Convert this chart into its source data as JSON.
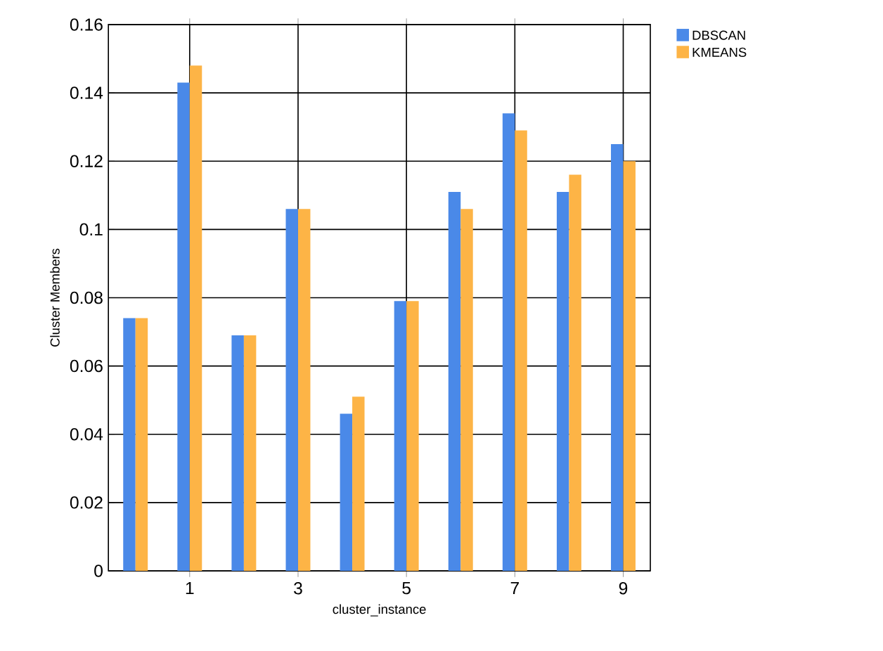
{
  "chart_data": {
    "type": "bar",
    "xlabel": "cluster_instance",
    "ylabel": "Cluster Members",
    "categories": [
      null,
      "1",
      null,
      "3",
      null,
      "5",
      null,
      "7",
      null,
      "9"
    ],
    "series": [
      {
        "name": "DBSCAN",
        "color": "#4a89e8",
        "values": [
          0.074,
          0.143,
          0.069,
          0.106,
          0.046,
          0.079,
          0.111,
          0.134,
          0.111,
          0.125
        ]
      },
      {
        "name": "KMEANS",
        "color": "#fdb446",
        "values": [
          0.074,
          0.148,
          0.069,
          0.106,
          0.051,
          0.079,
          0.106,
          0.129,
          0.116,
          0.12
        ]
      }
    ],
    "ylim": [
      0,
      0.16
    ],
    "yticks": [
      0,
      0.02,
      0.04,
      0.06,
      0.08,
      0.1,
      0.12,
      0.14,
      0.16
    ],
    "grid": true,
    "legend": "top right"
  }
}
